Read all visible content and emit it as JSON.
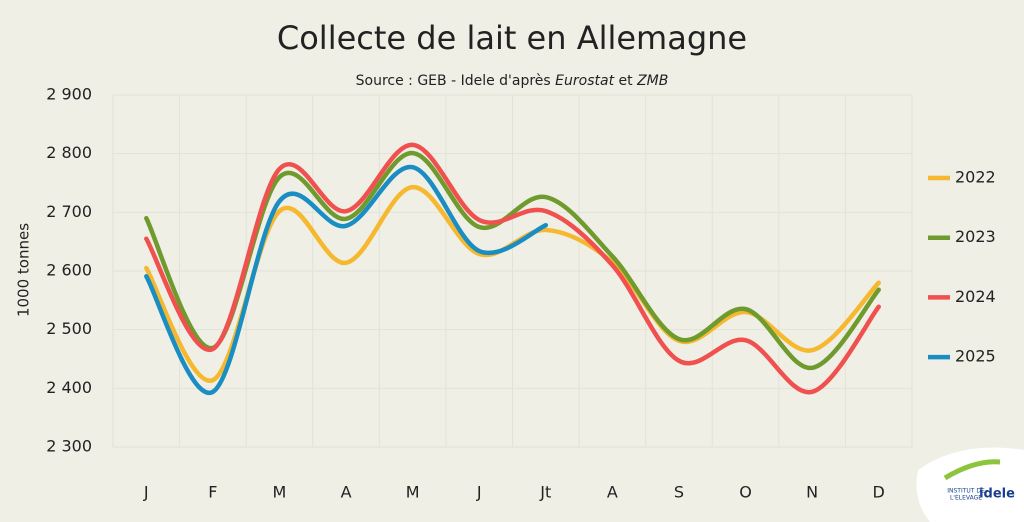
{
  "chart_data": {
    "type": "line",
    "title": "Collecte de lait en Allemagne",
    "subtitle": [
      "Source : GEB - Idele d'après",
      "Eurostat",
      "et",
      "ZMB"
    ],
    "y_label": "1000 tonnes",
    "categories": [
      "J",
      "F",
      "M",
      "A",
      "M",
      "J",
      "Jt",
      "A",
      "S",
      "O",
      "N",
      "D"
    ],
    "series": [
      {
        "name": "2022",
        "color": "#f5b82e",
        "values": [
          2605,
          2414,
          2702,
          2614,
          2743,
          2629,
          2670,
          2615,
          2481,
          2530,
          2465,
          2580
        ]
      },
      {
        "name": "2023",
        "color": "#6f9a2e",
        "values": [
          2690,
          2469,
          2760,
          2689,
          2801,
          2675,
          2726,
          2625,
          2484,
          2535,
          2435,
          2568
        ]
      },
      {
        "name": "2024",
        "color": "#f0504e",
        "values": [
          2655,
          2467,
          2774,
          2702,
          2815,
          2687,
          2702,
          2610,
          2447,
          2482,
          2394,
          2539
        ]
      },
      {
        "name": "2025",
        "color": "#1a8dc2",
        "values": [
          2591,
          2394,
          2719,
          2677,
          2777,
          2634,
          2678,
          null,
          null,
          null,
          null,
          null
        ]
      }
    ],
    "ylim": [
      2300,
      2900
    ],
    "yticks": [
      {
        "value": 2300,
        "label": "2 300"
      },
      {
        "value": 2400,
        "label": "2 400"
      },
      {
        "value": 2500,
        "label": "2 500"
      },
      {
        "value": 2600,
        "label": "2 600"
      },
      {
        "value": 2700,
        "label": "2 700"
      },
      {
        "value": 2800,
        "label": "2 800"
      },
      {
        "value": 2900,
        "label": "2 900"
      }
    ],
    "legend": "right",
    "smooth": true,
    "logo": {
      "line1": "INSTITUT DE",
      "line2": "L'ÉLEVAGE",
      "brand": "idele"
    }
  }
}
